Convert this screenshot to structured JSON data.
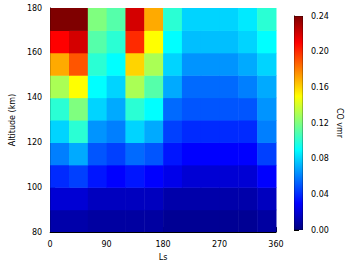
{
  "chart_data": {
    "type": "heatmap",
    "xlabel": "Ls",
    "ylabel": "Altitude (km)",
    "xlim": [
      0,
      360
    ],
    "xticks": [
      0,
      90,
      180,
      270,
      360
    ],
    "ylim": [
      80,
      180
    ],
    "yticks": [
      100,
      120,
      140,
      160,
      180
    ],
    "grid": false,
    "x_edges": [
      0,
      30,
      60,
      90,
      120,
      150,
      180,
      210,
      240,
      270,
      300,
      330,
      360
    ],
    "y_edges": [
      80,
      90,
      100,
      110,
      120,
      130,
      140,
      150,
      160,
      170,
      180
    ],
    "cells": [
      [
        0.01,
        0.01,
        0.008,
        0.008,
        0.008,
        0.008,
        0.005,
        0.005,
        0.005,
        0.005,
        0.005,
        0.008
      ],
      [
        0.02,
        0.02,
        0.015,
        0.015,
        0.015,
        0.015,
        0.01,
        0.01,
        0.01,
        0.01,
        0.01,
        0.015
      ],
      [
        0.04,
        0.045,
        0.035,
        0.03,
        0.035,
        0.03,
        0.025,
        0.02,
        0.02,
        0.02,
        0.02,
        0.03
      ],
      [
        0.06,
        0.07,
        0.05,
        0.045,
        0.055,
        0.05,
        0.035,
        0.03,
        0.03,
        0.03,
        0.03,
        0.045
      ],
      [
        0.08,
        0.1,
        0.065,
        0.06,
        0.08,
        0.07,
        0.045,
        0.04,
        0.04,
        0.04,
        0.04,
        0.06
      ],
      [
        0.1,
        0.12,
        0.08,
        0.07,
        0.1,
        0.09,
        0.055,
        0.05,
        0.05,
        0.05,
        0.05,
        0.065
      ],
      [
        0.13,
        0.15,
        0.09,
        0.08,
        0.13,
        0.11,
        0.07,
        0.055,
        0.055,
        0.055,
        0.06,
        0.07
      ],
      [
        0.17,
        0.19,
        0.1,
        0.09,
        0.16,
        0.13,
        0.08,
        0.065,
        0.065,
        0.065,
        0.07,
        0.08
      ],
      [
        0.21,
        0.22,
        0.11,
        0.1,
        0.2,
        0.15,
        0.09,
        0.075,
        0.075,
        0.075,
        0.08,
        0.09
      ],
      [
        0.24,
        0.24,
        0.12,
        0.11,
        0.22,
        0.17,
        0.1,
        0.08,
        0.08,
        0.08,
        0.085,
        0.1
      ]
    ],
    "colorbar": {
      "label": "CO vmr",
      "range": [
        0,
        0.24
      ],
      "ticks": [
        {
          "value": 0,
          "label": "0.00"
        },
        {
          "value": 0.04,
          "label": "0.04"
        },
        {
          "value": 0.08,
          "label": "0.08"
        },
        {
          "value": 0.12,
          "label": "0.12"
        },
        {
          "value": 0.16,
          "label": "0.16"
        },
        {
          "value": 0.2,
          "label": "0.20"
        },
        {
          "value": 0.24,
          "label": "0.24"
        }
      ]
    }
  }
}
